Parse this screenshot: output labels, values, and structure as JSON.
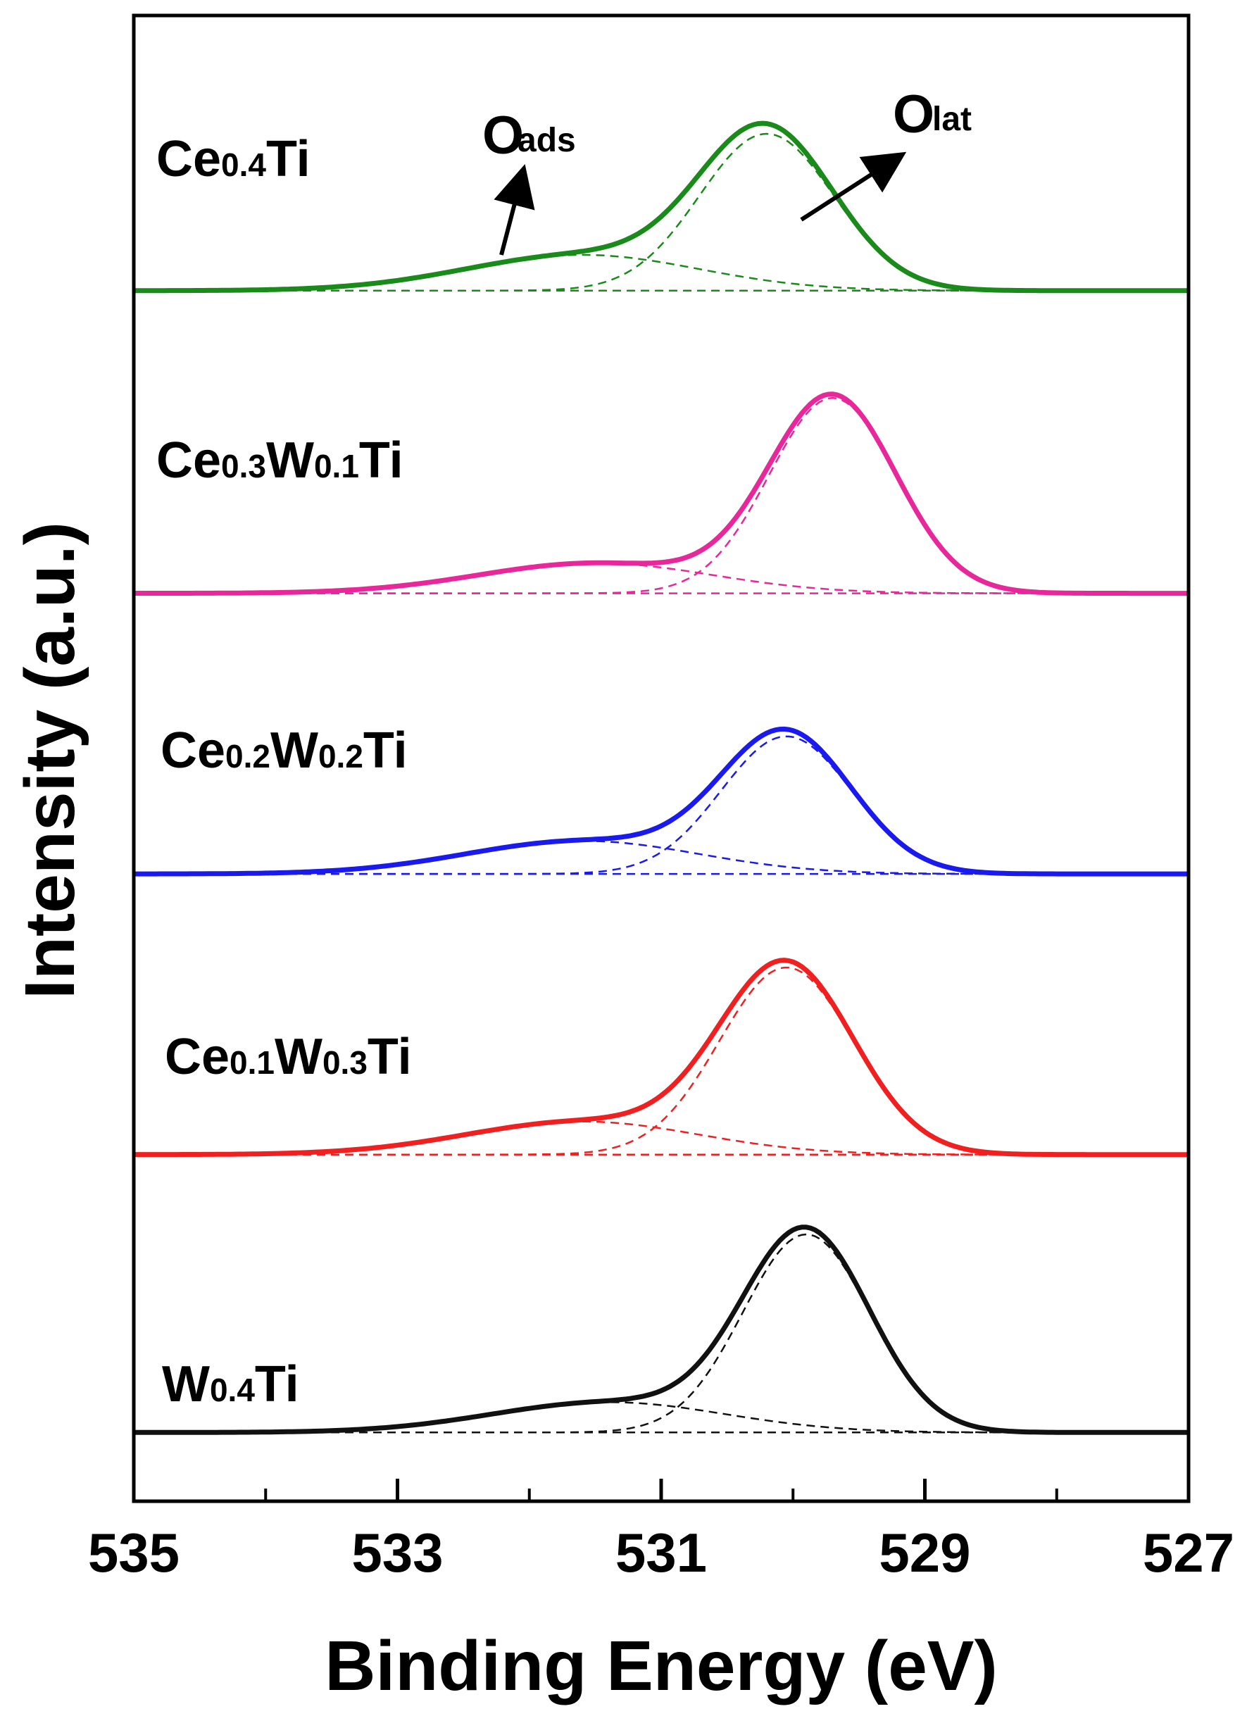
{
  "chart_data": {
    "type": "line",
    "title": "",
    "xlabel": "Binding Energy (eV)",
    "ylabel": "Intensity (a.u.)",
    "xlim": [
      535,
      527
    ],
    "x_reversed": true,
    "x_ticks": [
      "535",
      "533",
      "531",
      "529",
      "527"
    ],
    "x_tick_values": [
      535,
      533,
      531,
      529,
      527
    ],
    "x_minor_ticks": [
      534,
      532,
      530,
      528
    ],
    "ylim": [
      0,
      5.4
    ],
    "grid": false,
    "series": [
      {
        "name": "Ce0.4Ti",
        "label_main": "Ce",
        "label_parts": [
          {
            "t": "Ce",
            "s": false
          },
          {
            "t": "0.4",
            "s": true
          },
          {
            "t": "Ti",
            "s": false
          }
        ],
        "color": "#1a8a1a",
        "baseline": 4.4,
        "lat_center": 530.2,
        "lat_height": 0.57,
        "lat_width": 0.72,
        "ads_center": 531.6,
        "ads_height": 0.13,
        "ads_width": 1.25
      },
      {
        "name": "Ce0.3W0.1Ti",
        "label_parts": [
          {
            "t": "Ce",
            "s": false
          },
          {
            "t": "0.3",
            "s": true
          },
          {
            "t": "W",
            "s": false
          },
          {
            "t": "0.1",
            "s": true
          },
          {
            "t": "Ti",
            "s": false
          }
        ],
        "color": "#e8289a",
        "baseline": 3.3,
        "lat_center": 529.7,
        "lat_height": 0.71,
        "lat_width": 0.68,
        "ads_center": 531.5,
        "ads_height": 0.11,
        "ads_width": 1.25
      },
      {
        "name": "Ce0.2W0.2Ti",
        "label_parts": [
          {
            "t": "Ce",
            "s": false
          },
          {
            "t": "0.2",
            "s": true
          },
          {
            "t": "W",
            "s": false
          },
          {
            "t": "0.2",
            "s": true
          },
          {
            "t": "Ti",
            "s": false
          }
        ],
        "color": "#1a1aee",
        "baseline": 2.28,
        "lat_center": 530.05,
        "lat_height": 0.5,
        "lat_width": 0.7,
        "ads_center": 531.6,
        "ads_height": 0.12,
        "ads_width": 1.25
      },
      {
        "name": "Ce0.1W0.3Ti",
        "label_parts": [
          {
            "t": "Ce",
            "s": false
          },
          {
            "t": "0.1",
            "s": true
          },
          {
            "t": "W",
            "s": false
          },
          {
            "t": "0.3",
            "s": true
          },
          {
            "t": "Ti",
            "s": false
          }
        ],
        "color": "#f02020",
        "baseline": 1.26,
        "lat_center": 530.05,
        "lat_height": 0.68,
        "lat_width": 0.72,
        "ads_center": 531.6,
        "ads_height": 0.12,
        "ads_width": 1.25
      },
      {
        "name": "W0.4Ti",
        "label_parts": [
          {
            "t": "W",
            "s": false
          },
          {
            "t": "0.4",
            "s": true
          },
          {
            "t": "Ti",
            "s": false
          }
        ],
        "color": "#111111",
        "baseline": 0.25,
        "lat_center": 529.9,
        "lat_height": 0.72,
        "lat_width": 0.68,
        "ads_center": 531.4,
        "ads_height": 0.11,
        "ads_width": 1.25
      }
    ],
    "annotations": [
      {
        "main": "O",
        "sub": "ads",
        "target": "adsorbed oxygen"
      },
      {
        "main": "O",
        "sub": "lat",
        "target": "lattice oxygen"
      }
    ]
  }
}
